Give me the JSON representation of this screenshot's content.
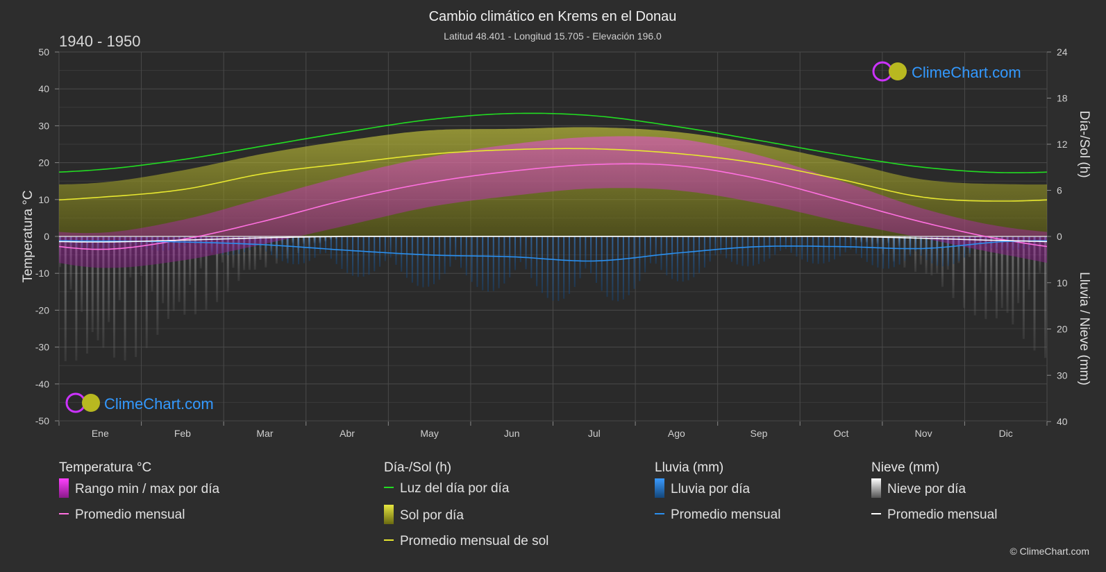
{
  "title": "Cambio climático en Krems en el Donau",
  "subtitle": "Latitud 48.401 - Longitud 15.705 - Elevación 196.0",
  "period": "1940 - 1950",
  "watermark": "ClimeChart.com",
  "copyright": "© ClimeChart.com",
  "colors": {
    "background": "#2d2d2d",
    "temp_range": "#d020c0",
    "temp_avg": "#ff70e0",
    "daylight": "#22dd22",
    "sun_fill": "#a8a820",
    "sun_avg": "#e8e830",
    "rain": "#2a80d0",
    "rain_avg": "#2a90f0",
    "snow": "#909090",
    "snow_avg": "#ffffff",
    "brand": "#3399ff"
  },
  "legend": {
    "temperature": {
      "heading": "Temperatura °C",
      "range": "Rango min / max por día",
      "avg": "Promedio mensual"
    },
    "daysun": {
      "heading": "Día-/Sol (h)",
      "daylight": "Luz del día por día",
      "sun": "Sol por día",
      "sun_avg": "Promedio mensual de sol"
    },
    "rain": {
      "heading": "Lluvia (mm)",
      "daily": "Lluvia por día",
      "avg": "Promedio mensual"
    },
    "snow": {
      "heading": "Nieve (mm)",
      "daily": "Nieve por día",
      "avg": "Promedio mensual"
    }
  },
  "chart_data": {
    "type": "area",
    "categories": [
      "Ene",
      "Feb",
      "Mar",
      "Abr",
      "May",
      "Jun",
      "Jul",
      "Ago",
      "Sep",
      "Oct",
      "Nov",
      "Dic"
    ],
    "y_left": {
      "label": "Temperatura °C",
      "range": [
        -50,
        50
      ],
      "ticks": [
        50,
        40,
        30,
        20,
        10,
        0,
        -10,
        -20,
        -30,
        -40,
        -50
      ]
    },
    "y_right_top": {
      "label": "Día-/Sol (h)",
      "range": [
        0,
        24
      ],
      "ticks": [
        24,
        18,
        12,
        6,
        0
      ]
    },
    "y_right_bottom": {
      "label": "Lluvia / Nieve (mm)",
      "range": [
        0,
        40
      ],
      "ticks": [
        0,
        10,
        20,
        30,
        40
      ]
    },
    "grid": true,
    "series": [
      {
        "name": "Promedio mensual",
        "unit": "°C",
        "values": [
          -3.5,
          -0.8,
          4.2,
          10.0,
          14.6,
          17.7,
          19.5,
          19.2,
          15.6,
          9.8,
          3.8,
          -1.0
        ]
      },
      {
        "name": "Rango min / max por día (max)",
        "unit": "°C",
        "values": [
          1.0,
          4.5,
          10.5,
          16.5,
          21.5,
          25.0,
          27.0,
          26.5,
          22.0,
          15.0,
          7.5,
          2.5
        ]
      },
      {
        "name": "Rango min / max por día (min)",
        "unit": "°C",
        "values": [
          -8.5,
          -6.5,
          -2.0,
          3.0,
          8.0,
          11.0,
          13.0,
          12.5,
          9.0,
          4.0,
          -0.5,
          -5.0
        ]
      },
      {
        "name": "Luz del día por día",
        "unit": "h",
        "values": [
          8.7,
          10.0,
          11.8,
          13.6,
          15.2,
          16.0,
          15.7,
          14.3,
          12.5,
          10.6,
          9.0,
          8.3
        ]
      },
      {
        "name": "Sol por día",
        "unit": "h",
        "values": [
          7.0,
          8.6,
          10.8,
          12.5,
          13.8,
          14.0,
          14.2,
          13.6,
          12.0,
          9.8,
          7.4,
          6.8
        ]
      },
      {
        "name": "Promedio mensual de sol",
        "unit": "h",
        "values": [
          5.1,
          6.1,
          8.2,
          9.5,
          10.7,
          11.3,
          11.4,
          10.8,
          9.5,
          7.4,
          5.1,
          4.6
        ]
      },
      {
        "name": "Lluvia · Promedio mensual",
        "unit": "mm",
        "values": [
          1.0,
          1.2,
          1.8,
          3.0,
          4.0,
          4.4,
          5.3,
          3.6,
          2.2,
          2.2,
          2.6,
          1.1
        ]
      },
      {
        "name": "Nieve · Promedio mensual",
        "unit": "mm",
        "values": [
          1.2,
          0.8,
          0.3,
          0.0,
          0.0,
          0.0,
          0.0,
          0.0,
          0.0,
          0.0,
          0.4,
          0.9
        ]
      }
    ]
  }
}
